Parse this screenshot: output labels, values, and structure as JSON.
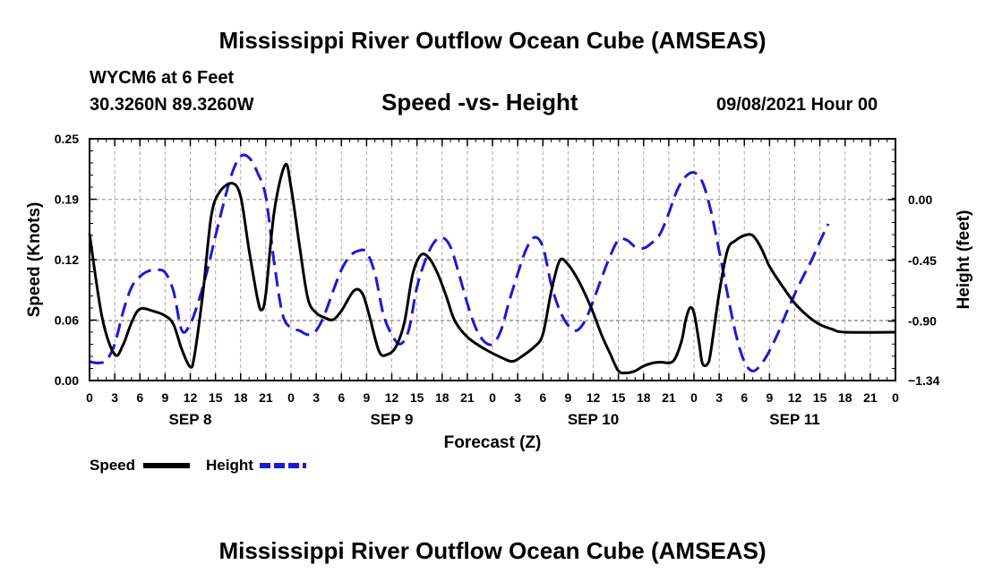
{
  "header": {
    "title": "Mississippi River Outflow Ocean Cube (AMSEAS)",
    "station": "WYCM6 at 6 Feet",
    "coords": "30.3260N  89.3260W",
    "subtitle": "Speed -vs- Height",
    "datetime": "09/08/2021 Hour 00"
  },
  "footer": {
    "title": "Mississippi River Outflow Ocean Cube (AMSEAS)"
  },
  "colors": {
    "speed": "#000000",
    "height": "#1a1ad6",
    "grid": "#aaaaaa"
  },
  "chart_data": {
    "type": "line",
    "title": "Speed -vs- Height",
    "xlabel": "Forecast (Z)",
    "ylabel": "Speed (Knots)",
    "y2label": "Height (feet)",
    "x_range_hours": [
      0,
      96
    ],
    "ylim": [
      0,
      0.25
    ],
    "y2lim": [
      -1.34,
      0.45
    ],
    "yticks": [
      {
        "value": 0.0,
        "label": "0.00"
      },
      {
        "value": 0.0625,
        "label": "0.06"
      },
      {
        "value": 0.125,
        "label": "0.12"
      },
      {
        "value": 0.1875,
        "label": "0.19"
      },
      {
        "value": 0.25,
        "label": "0.25"
      }
    ],
    "y2ticks": [
      {
        "value": 0.0,
        "label": "0.00"
      },
      {
        "value": -0.45,
        "label": "-0.45"
      },
      {
        "value": -0.9,
        "label": "-0.90"
      },
      {
        "value": -1.34,
        "label": "−1.34"
      }
    ],
    "xtick_labels": [
      "0",
      "3",
      "6",
      "9",
      "12",
      "15",
      "18",
      "21",
      "0",
      "3",
      "6",
      "9",
      "12",
      "15",
      "18",
      "21",
      "0",
      "3",
      "6",
      "9",
      "12",
      "15",
      "18",
      "21",
      "0",
      "3",
      "6",
      "9",
      "12",
      "15",
      "18",
      "21",
      "0"
    ],
    "day_labels": [
      {
        "hour": 12,
        "label": "SEP 8"
      },
      {
        "hour": 36,
        "label": "SEP 9"
      },
      {
        "hour": 60,
        "label": "SEP 10"
      },
      {
        "hour": 84,
        "label": "SEP 11"
      }
    ],
    "series": [
      {
        "name": "Speed",
        "axis": "left",
        "style": "solid",
        "points": [
          [
            0,
            0.152
          ],
          [
            1.5,
            0.065
          ],
          [
            3,
            0.027
          ],
          [
            4,
            0.037
          ],
          [
            5,
            0.06
          ],
          [
            6,
            0.074
          ],
          [
            7.5,
            0.072
          ],
          [
            9,
            0.067
          ],
          [
            10,
            0.058
          ],
          [
            11,
            0.032
          ],
          [
            12,
            0.014
          ],
          [
            12.5,
            0.026
          ],
          [
            13.5,
            0.09
          ],
          [
            14.5,
            0.17
          ],
          [
            15.5,
            0.195
          ],
          [
            17,
            0.204
          ],
          [
            18,
            0.19
          ],
          [
            19,
            0.135
          ],
          [
            20,
            0.085
          ],
          [
            20.5,
            0.073
          ],
          [
            21,
            0.09
          ],
          [
            22,
            0.175
          ],
          [
            23.3,
            0.223
          ],
          [
            24,
            0.2
          ],
          [
            25,
            0.14
          ],
          [
            26,
            0.085
          ],
          [
            27,
            0.07
          ],
          [
            28,
            0.065
          ],
          [
            29,
            0.063
          ],
          [
            30,
            0.072
          ],
          [
            31.5,
            0.093
          ],
          [
            32.5,
            0.09
          ],
          [
            33.3,
            0.068
          ],
          [
            34.5,
            0.03
          ],
          [
            35.5,
            0.027
          ],
          [
            36.5,
            0.035
          ],
          [
            37.5,
            0.06
          ],
          [
            38.5,
            0.11
          ],
          [
            39.5,
            0.13
          ],
          [
            40.5,
            0.126
          ],
          [
            41.5,
            0.11
          ],
          [
            42.5,
            0.087
          ],
          [
            43.5,
            0.062
          ],
          [
            45,
            0.045
          ],
          [
            47,
            0.033
          ],
          [
            49.5,
            0.022
          ],
          [
            50.5,
            0.02
          ],
          [
            51.5,
            0.025
          ],
          [
            53,
            0.035
          ],
          [
            54,
            0.048
          ],
          [
            55,
            0.092
          ],
          [
            56,
            0.124
          ],
          [
            57,
            0.12
          ],
          [
            58,
            0.107
          ],
          [
            59,
            0.09
          ],
          [
            60,
            0.07
          ],
          [
            61,
            0.047
          ],
          [
            62,
            0.028
          ],
          [
            63,
            0.01
          ],
          [
            64,
            0.008
          ],
          [
            65,
            0.01
          ],
          [
            66,
            0.015
          ],
          [
            67,
            0.018
          ],
          [
            68,
            0.019
          ],
          [
            69.5,
            0.02
          ],
          [
            70.5,
            0.04
          ],
          [
            71,
            0.062
          ],
          [
            71.5,
            0.075
          ],
          [
            72,
            0.07
          ],
          [
            72.6,
            0.04
          ],
          [
            73,
            0.018
          ],
          [
            73.6,
            0.017
          ],
          [
            74,
            0.03
          ],
          [
            75,
            0.09
          ],
          [
            76,
            0.135
          ],
          [
            77,
            0.145
          ],
          [
            78,
            0.15
          ],
          [
            79,
            0.15
          ],
          [
            80,
            0.137
          ],
          [
            81,
            0.118
          ],
          [
            82.5,
            0.098
          ],
          [
            84,
            0.08
          ],
          [
            85.5,
            0.067
          ],
          [
            87,
            0.058
          ],
          [
            88.5,
            0.053
          ],
          [
            90,
            0.05
          ],
          [
            96,
            0.05
          ]
        ]
      },
      {
        "name": "Height",
        "axis": "right",
        "style": "dashed",
        "points": [
          [
            0,
            -1.2
          ],
          [
            1,
            -1.21
          ],
          [
            2,
            -1.19
          ],
          [
            3,
            -1.07
          ],
          [
            4,
            -0.83
          ],
          [
            5,
            -0.65
          ],
          [
            6,
            -0.57
          ],
          [
            7,
            -0.53
          ],
          [
            8,
            -0.52
          ],
          [
            9,
            -0.54
          ],
          [
            10,
            -0.68
          ],
          [
            11,
            -0.97
          ],
          [
            12,
            -0.92
          ],
          [
            13,
            -0.75
          ],
          [
            14,
            -0.53
          ],
          [
            15,
            -0.27
          ],
          [
            16,
            -0.02
          ],
          [
            17,
            0.2
          ],
          [
            18,
            0.32
          ],
          [
            19,
            0.31
          ],
          [
            20,
            0.2
          ],
          [
            21,
            0.02
          ],
          [
            22,
            -0.47
          ],
          [
            23,
            -0.85
          ],
          [
            24,
            -0.95
          ],
          [
            25,
            -0.97
          ],
          [
            26,
            -1.0
          ],
          [
            27,
            -0.97
          ],
          [
            28,
            -0.85
          ],
          [
            29,
            -0.68
          ],
          [
            30,
            -0.52
          ],
          [
            31,
            -0.42
          ],
          [
            32,
            -0.38
          ],
          [
            33,
            -0.39
          ],
          [
            34,
            -0.55
          ],
          [
            35,
            -0.85
          ],
          [
            36,
            -1.0
          ],
          [
            37,
            -1.07
          ],
          [
            38,
            -0.97
          ],
          [
            39,
            -0.65
          ],
          [
            40,
            -0.45
          ],
          [
            41,
            -0.32
          ],
          [
            42,
            -0.28
          ],
          [
            43,
            -0.35
          ],
          [
            44,
            -0.55
          ],
          [
            45,
            -0.77
          ],
          [
            46,
            -0.95
          ],
          [
            47,
            -1.05
          ],
          [
            48,
            -1.07
          ],
          [
            49,
            -0.97
          ],
          [
            50,
            -0.75
          ],
          [
            51,
            -0.55
          ],
          [
            52,
            -0.37
          ],
          [
            53,
            -0.28
          ],
          [
            54,
            -0.35
          ],
          [
            55,
            -0.63
          ],
          [
            56,
            -0.82
          ],
          [
            57,
            -0.93
          ],
          [
            58,
            -0.97
          ],
          [
            59,
            -0.9
          ],
          [
            60,
            -0.75
          ],
          [
            61,
            -0.58
          ],
          [
            62,
            -0.42
          ],
          [
            63,
            -0.3
          ],
          [
            64,
            -0.3
          ],
          [
            65,
            -0.35
          ],
          [
            66,
            -0.36
          ],
          [
            67,
            -0.32
          ],
          [
            68,
            -0.25
          ],
          [
            69,
            -0.1
          ],
          [
            70,
            0.07
          ],
          [
            71,
            0.17
          ],
          [
            72,
            0.2
          ],
          [
            73,
            0.13
          ],
          [
            74,
            -0.08
          ],
          [
            75,
            -0.38
          ],
          [
            76,
            -0.7
          ],
          [
            77,
            -1.0
          ],
          [
            78,
            -1.2
          ],
          [
            79,
            -1.27
          ],
          [
            80,
            -1.22
          ],
          [
            81,
            -1.12
          ],
          [
            82,
            -0.99
          ],
          [
            83,
            -0.84
          ],
          [
            84,
            -0.7
          ],
          [
            85,
            -0.57
          ],
          [
            86,
            -0.45
          ],
          [
            87,
            -0.31
          ],
          [
            88,
            -0.18
          ]
        ]
      }
    ],
    "legend": [
      {
        "label": "Speed",
        "style": "solid"
      },
      {
        "label": "Height",
        "style": "dashed"
      }
    ]
  }
}
